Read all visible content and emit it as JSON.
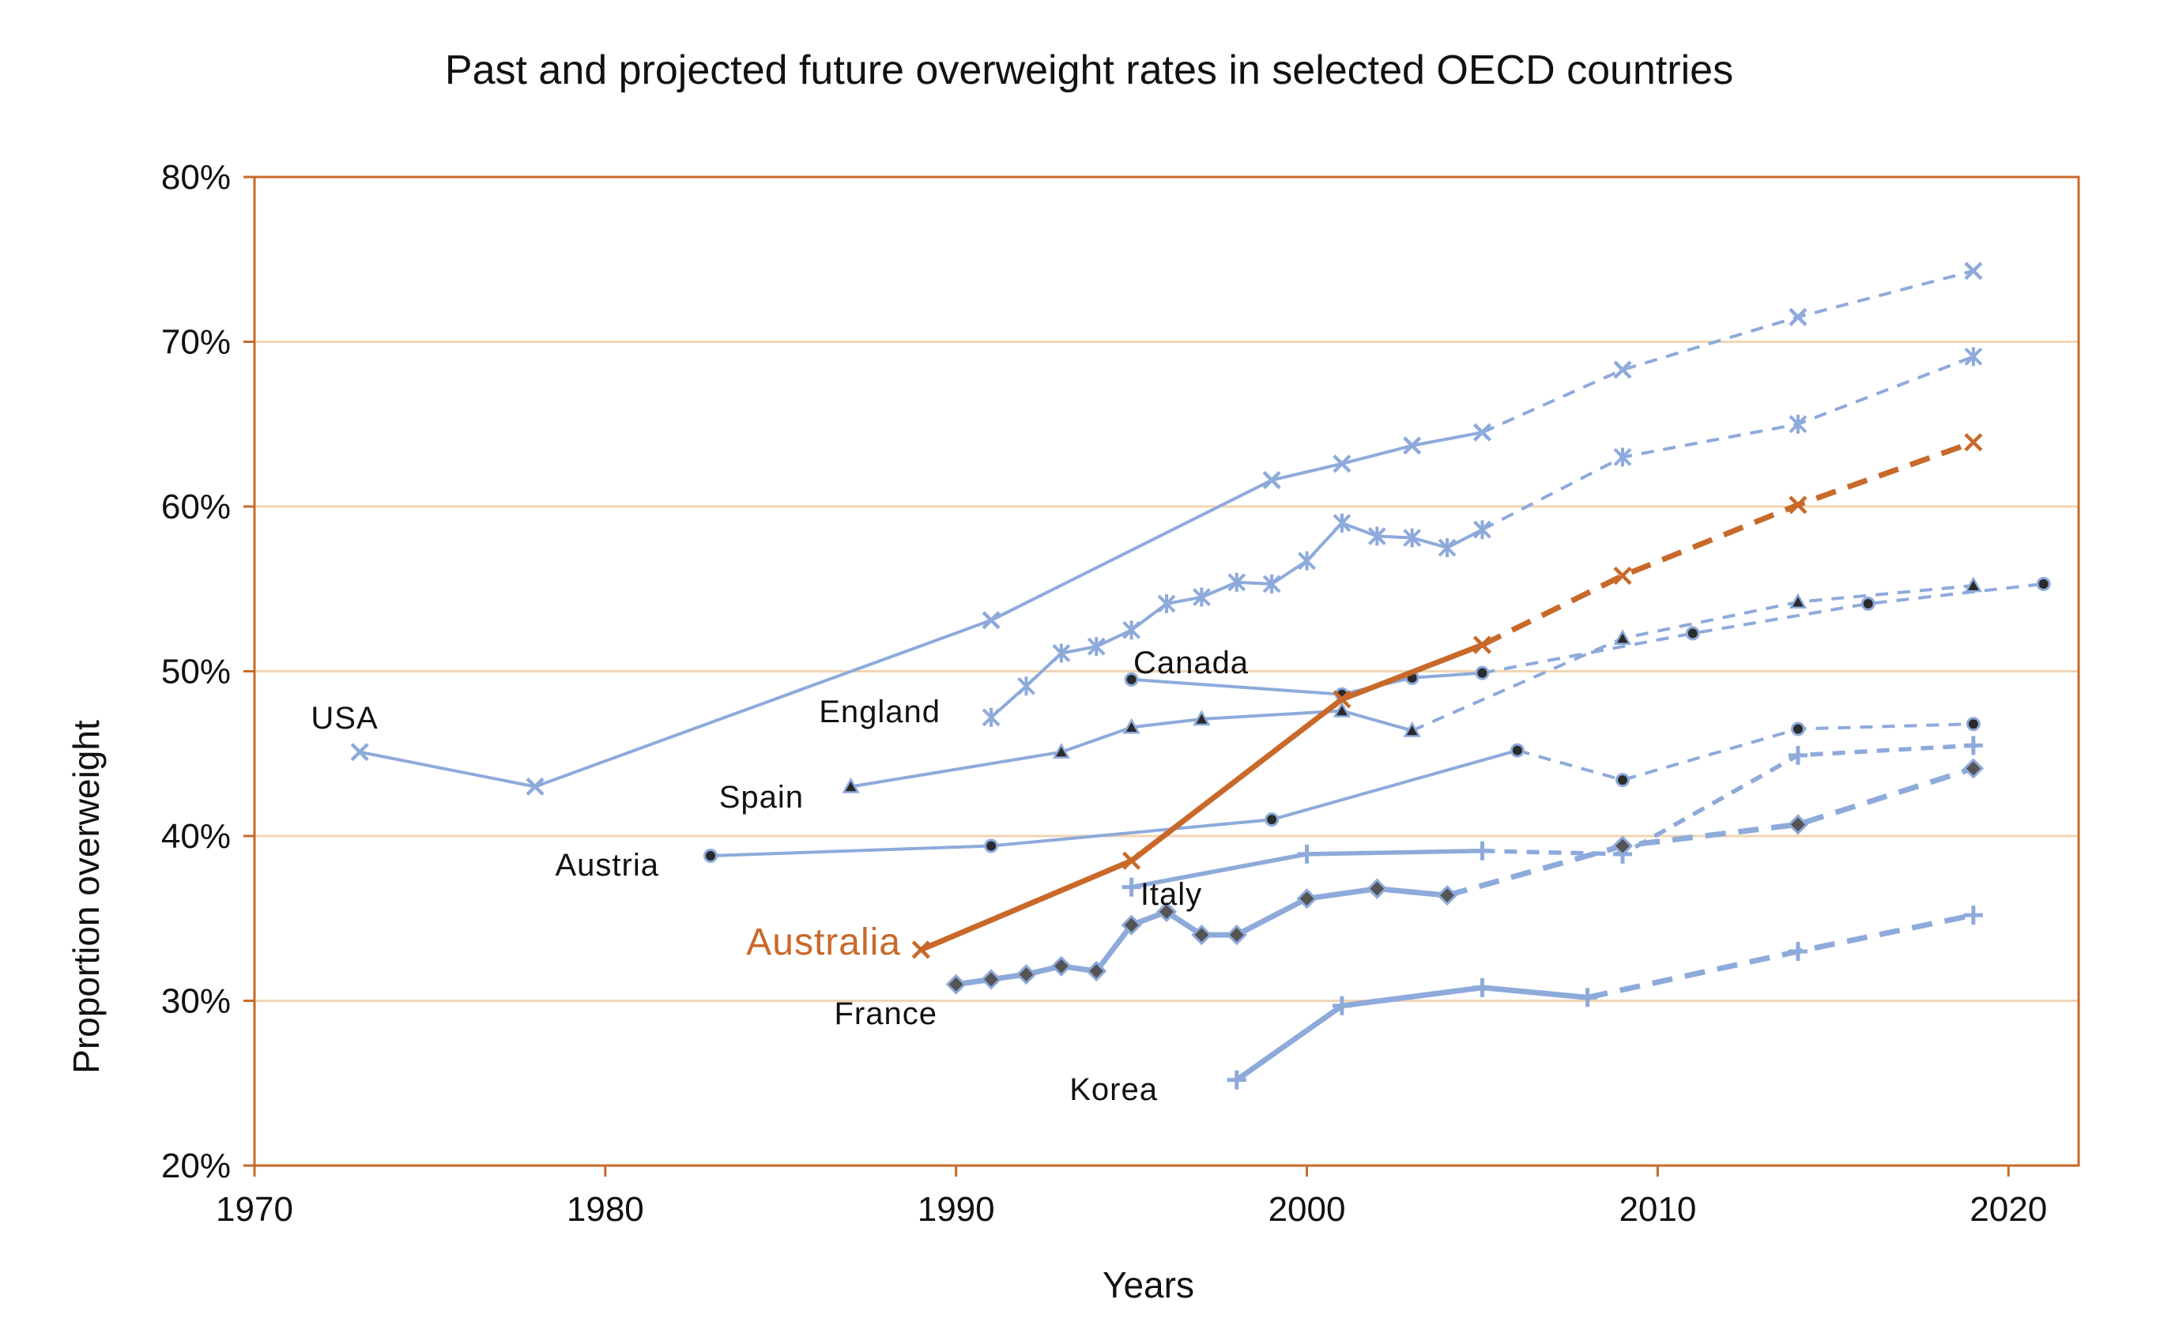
{
  "chart_data": {
    "type": "line",
    "title": "Past and projected future overweight rates in selected OECD countries",
    "xlabel": "Years",
    "ylabel": "Proportion overweight",
    "xlim": [
      1970,
      2022
    ],
    "ylim": [
      0.2,
      0.8
    ],
    "x_ticks": [
      1970,
      1980,
      1990,
      2000,
      2010,
      2020
    ],
    "x_tick_labels": [
      "1970",
      "1980",
      "1990",
      "2000",
      "2010",
      "2020"
    ],
    "y_ticks": [
      0.2,
      0.3,
      0.4,
      0.5,
      0.6,
      0.7,
      0.8
    ],
    "y_tick_labels": [
      "20%",
      "30%",
      "40%",
      "50%",
      "60%",
      "70%",
      "80%"
    ],
    "grid": "horizontal",
    "colors": {
      "series": "#8eaadb",
      "highlight": "#c8692a",
      "frame": "#c8692a",
      "grid": "#f2d5b3",
      "marker_dark": "#2b2b2b"
    },
    "series": [
      {
        "name": "USA",
        "marker": "x",
        "width": "thin",
        "historical": [
          [
            1973,
            0.451
          ],
          [
            1978,
            0.43
          ],
          [
            1991,
            0.531
          ],
          [
            1999,
            0.616
          ],
          [
            2001,
            0.626
          ],
          [
            2003,
            0.637
          ],
          [
            2005,
            0.645
          ]
        ],
        "projected": [
          [
            2005,
            0.645
          ],
          [
            2009,
            0.683
          ],
          [
            2014,
            0.715
          ],
          [
            2019,
            0.743
          ]
        ]
      },
      {
        "name": "England",
        "marker": "asterisk",
        "width": "thin",
        "historical": [
          [
            1991,
            0.472
          ],
          [
            1992,
            0.491
          ],
          [
            1993,
            0.511
          ],
          [
            1994,
            0.515
          ],
          [
            1995,
            0.525
          ],
          [
            1996,
            0.541
          ],
          [
            1997,
            0.545
          ],
          [
            1998,
            0.554
          ],
          [
            1999,
            0.553
          ],
          [
            2000,
            0.567
          ],
          [
            2001,
            0.59
          ],
          [
            2002,
            0.582
          ],
          [
            2003,
            0.581
          ],
          [
            2004,
            0.575
          ],
          [
            2005,
            0.586
          ]
        ],
        "projected": [
          [
            2005,
            0.586
          ],
          [
            2009,
            0.63
          ],
          [
            2014,
            0.65
          ],
          [
            2019,
            0.691
          ]
        ]
      },
      {
        "name": "Canada",
        "marker": "circle",
        "width": "thin",
        "historical": [
          [
            1995,
            0.495
          ],
          [
            2001,
            0.486
          ],
          [
            2003,
            0.496
          ],
          [
            2005,
            0.499
          ]
        ],
        "projected": [
          [
            2005,
            0.499
          ],
          [
            2011,
            0.523
          ],
          [
            2016,
            0.541
          ],
          [
            2021,
            0.553
          ]
        ]
      },
      {
        "name": "Spain",
        "marker": "triangle",
        "width": "thin",
        "historical": [
          [
            1987,
            0.43
          ],
          [
            1993,
            0.451
          ],
          [
            1995,
            0.466
          ],
          [
            1997,
            0.471
          ],
          [
            2001,
            0.476
          ],
          [
            2003,
            0.464
          ]
        ],
        "projected": [
          [
            2003,
            0.464
          ],
          [
            2009,
            0.52
          ],
          [
            2014,
            0.542
          ],
          [
            2019,
            0.552
          ]
        ]
      },
      {
        "name": "Austria",
        "marker": "circle",
        "width": "thin",
        "historical": [
          [
            1983,
            0.388
          ],
          [
            1991,
            0.394
          ],
          [
            1999,
            0.41
          ],
          [
            2006,
            0.452
          ]
        ],
        "projected": [
          [
            2006,
            0.452
          ],
          [
            2009,
            0.434
          ],
          [
            2014,
            0.465
          ],
          [
            2019,
            0.468
          ]
        ]
      },
      {
        "name": "Italy",
        "marker": "plus",
        "width": "medium",
        "historical": [
          [
            1995,
            0.369
          ],
          [
            2000,
            0.389
          ],
          [
            2005,
            0.391
          ]
        ],
        "projected": [
          [
            2005,
            0.391
          ],
          [
            2009,
            0.389
          ],
          [
            2014,
            0.449
          ],
          [
            2019,
            0.455
          ]
        ]
      },
      {
        "name": "France",
        "marker": "diamond",
        "width": "thick",
        "historical": [
          [
            1990,
            0.31
          ],
          [
            1991,
            0.313
          ],
          [
            1992,
            0.316
          ],
          [
            1993,
            0.321
          ],
          [
            1994,
            0.318
          ],
          [
            1995,
            0.346
          ],
          [
            1996,
            0.354
          ],
          [
            1997,
            0.34
          ],
          [
            1998,
            0.34
          ],
          [
            2000,
            0.362
          ],
          [
            2002,
            0.368
          ],
          [
            2004,
            0.364
          ]
        ],
        "projected": [
          [
            2004,
            0.364
          ],
          [
            2009,
            0.394
          ],
          [
            2014,
            0.407
          ],
          [
            2019,
            0.441
          ]
        ]
      },
      {
        "name": "Korea",
        "marker": "plus",
        "width": "thick",
        "historical": [
          [
            1998,
            0.252
          ],
          [
            2001,
            0.297
          ],
          [
            2005,
            0.308
          ],
          [
            2008,
            0.302
          ]
        ],
        "projected": [
          [
            2008,
            0.302
          ],
          [
            2014,
            0.33
          ],
          [
            2019,
            0.352
          ]
        ]
      },
      {
        "name": "Australia",
        "marker": "x",
        "width": "thick",
        "highlight": true,
        "historical": [
          [
            1989,
            0.331
          ],
          [
            1995,
            0.385
          ],
          [
            2001,
            0.483
          ],
          [
            2005,
            0.516
          ]
        ],
        "projected": [
          [
            2005,
            0.516
          ],
          [
            2009,
            0.558
          ],
          [
            2014,
            0.601
          ],
          [
            2019,
            0.639
          ]
        ]
      }
    ]
  }
}
